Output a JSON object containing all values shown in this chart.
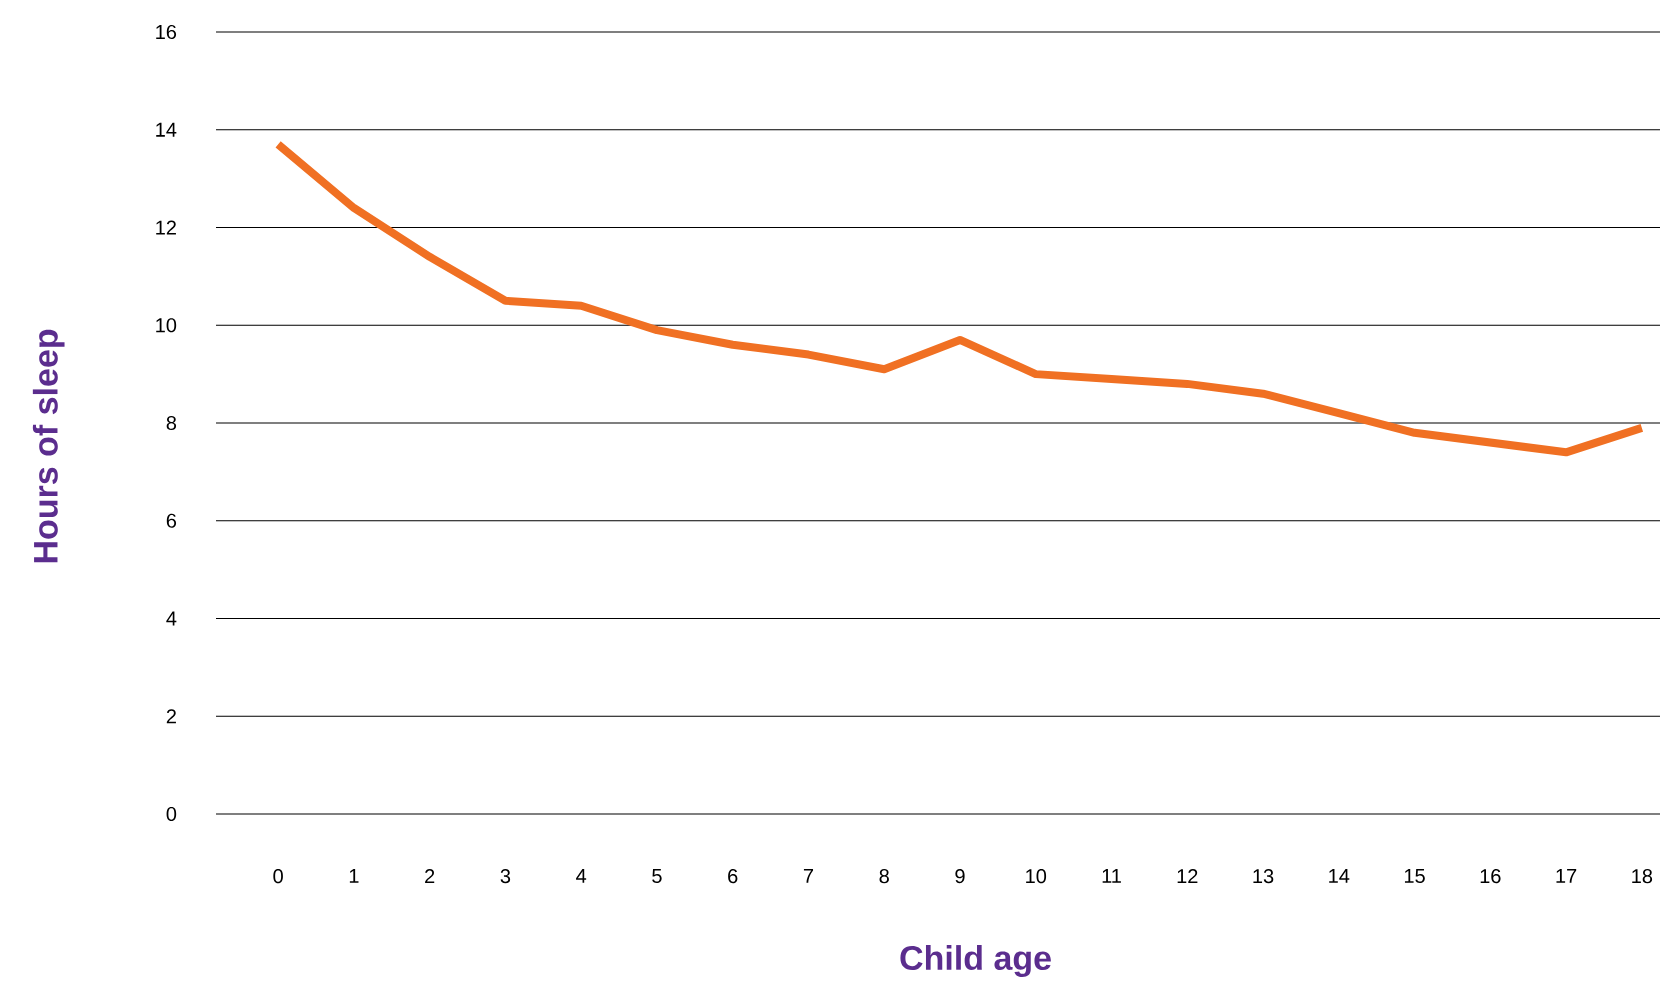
{
  "chart_data": {
    "type": "line",
    "xlabel": "Child age",
    "ylabel": "Hours of sleep",
    "categories": [
      "0",
      "1",
      "2",
      "3",
      "4",
      "5",
      "6",
      "7",
      "8",
      "9",
      "10",
      "11",
      "12",
      "13",
      "14",
      "15",
      "16",
      "17",
      "18"
    ],
    "series": [
      {
        "color": "#f07023",
        "values": [
          13.7,
          12.4,
          11.4,
          10.5,
          10.4,
          9.9,
          9.6,
          9.4,
          9.1,
          9.7,
          9.0,
          8.9,
          8.8,
          8.6,
          8.2,
          7.8,
          7.6,
          7.4,
          7.9
        ]
      }
    ],
    "ylim": [
      0,
      16
    ],
    "yticks": [
      0,
      2,
      4,
      6,
      8,
      10,
      12,
      14,
      16
    ],
    "grid": "y",
    "marker": "none",
    "line_style": "solid"
  }
}
